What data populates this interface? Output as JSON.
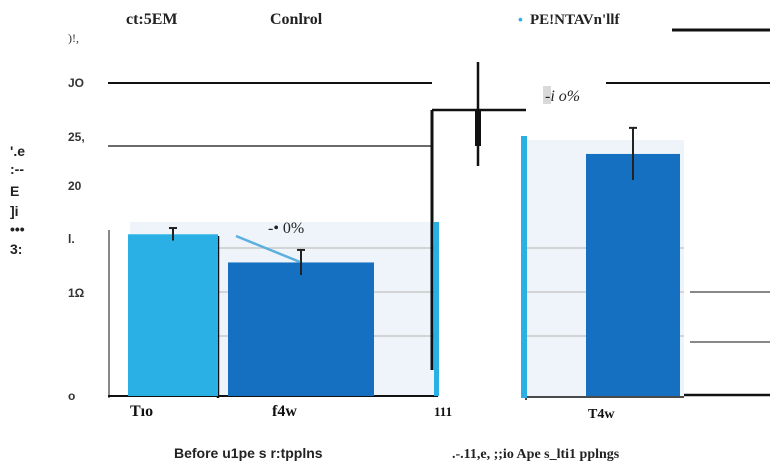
{
  "chart_data": {
    "type": "bar",
    "headers": {
      "left_a": "ct:5EM",
      "left_b": "Conlrol",
      "right_marker": "•",
      "right": "PE!NTAVn'llf",
      "small": ")!,"
    },
    "y_axis_label_fragments": [
      "'.e",
      ":--",
      "E",
      "]i",
      "•••",
      "3:"
    ],
    "y_ticks": [
      "JO",
      "25,",
      "20",
      "l.",
      "1Ω",
      "o"
    ],
    "y_tick_values": [
      30,
      25,
      20,
      15,
      10,
      0
    ],
    "ylim": [
      0,
      31
    ],
    "groups": [
      {
        "label": "Before u1pe s r:tpplns",
        "bars": [
          {
            "category": "Tıo",
            "value": 15.5,
            "error": 0.6,
            "color": "#2bb0e6"
          },
          {
            "category": "f4w",
            "value": 12.8,
            "error": 1.2,
            "color": "#1570c2"
          }
        ],
        "annotation": "-• 0%"
      },
      {
        "label": ".-.11,e, ;;io Ape s_lti1 pplngs",
        "bars": [
          {
            "category": "111",
            "value": 0,
            "error": 0,
            "color": "#2bb0e6"
          },
          {
            "category": "T4w",
            "value": 23.2,
            "error": 2.5,
            "color": "#1570c2"
          }
        ],
        "annotation": "-i o%"
      }
    ],
    "colors": {
      "light": "#2bb0e6",
      "dark": "#1570c2",
      "panel": "#eef4fa",
      "grid": "#c9c9c9"
    }
  }
}
